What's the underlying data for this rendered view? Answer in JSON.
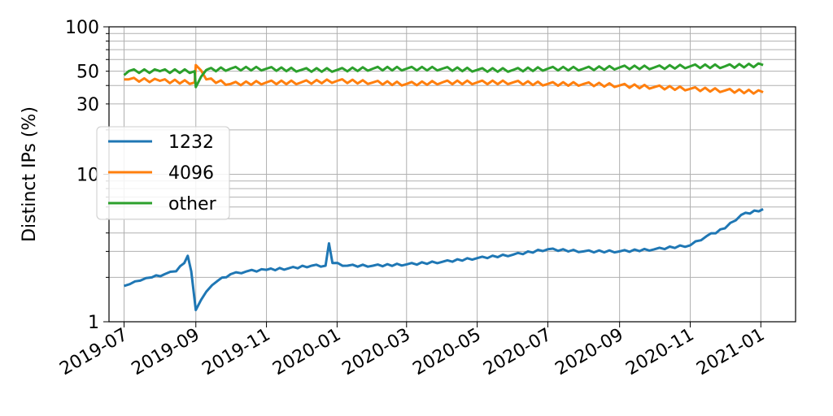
{
  "chart_data": {
    "type": "line",
    "title": "",
    "xlabel": "",
    "ylabel": "Distinct IPs (%)",
    "yscale": "log",
    "ylim": [
      1,
      100
    ],
    "xlim": [
      "2019-06-18",
      "2021-01-31"
    ],
    "grid": true,
    "legend_position": "center-left",
    "x_tick_labels": [
      "2019-07",
      "2019-09",
      "2019-11",
      "2020-01",
      "2020-03",
      "2020-05",
      "2020-07",
      "2020-09",
      "2020-11",
      "2021-01"
    ],
    "y_tick_labels": [
      "1",
      "10",
      "30",
      "50",
      "100"
    ],
    "series": [
      {
        "name": "1232",
        "color": "#1f77b4",
        "points": [
          [
            "2019-07-01",
            1.75
          ],
          [
            "2019-07-06",
            1.8
          ],
          [
            "2019-07-15",
            1.9
          ],
          [
            "2019-07-25",
            2.0
          ],
          [
            "2019-08-05",
            2.1
          ],
          [
            "2019-08-15",
            2.2
          ],
          [
            "2019-08-22",
            2.5
          ],
          [
            "2019-08-25",
            2.8
          ],
          [
            "2019-08-28",
            2.2
          ],
          [
            "2019-09-01",
            1.2
          ],
          [
            "2019-09-10",
            1.6
          ],
          [
            "2019-09-20",
            1.9
          ],
          [
            "2019-10-01",
            2.1
          ],
          [
            "2019-10-15",
            2.2
          ],
          [
            "2019-11-01",
            2.25
          ],
          [
            "2019-11-20",
            2.3
          ],
          [
            "2019-12-10",
            2.4
          ],
          [
            "2019-12-22",
            2.4
          ],
          [
            "2019-12-25",
            3.4
          ],
          [
            "2019-12-28",
            2.5
          ],
          [
            "2020-01-10",
            2.4
          ],
          [
            "2020-02-01",
            2.4
          ],
          [
            "2020-03-01",
            2.45
          ],
          [
            "2020-04-01",
            2.55
          ],
          [
            "2020-05-01",
            2.7
          ],
          [
            "2020-06-01",
            2.85
          ],
          [
            "2020-07-01",
            3.1
          ],
          [
            "2020-08-01",
            3.0
          ],
          [
            "2020-09-01",
            3.0
          ],
          [
            "2020-10-01",
            3.1
          ],
          [
            "2020-11-01",
            3.3
          ],
          [
            "2020-11-15",
            3.8
          ],
          [
            "2020-12-01",
            4.3
          ],
          [
            "2020-12-15",
            5.3
          ],
          [
            "2021-01-03",
            5.8
          ]
        ]
      },
      {
        "name": "4096",
        "color": "#ff7f0e",
        "points": [
          [
            "2019-07-01",
            44
          ],
          [
            "2019-07-05",
            44
          ],
          [
            "2019-08-01",
            43
          ],
          [
            "2019-08-31",
            42
          ],
          [
            "2019-09-01",
            55
          ],
          [
            "2019-09-10",
            44
          ],
          [
            "2019-10-01",
            41
          ],
          [
            "2019-11-01",
            42
          ],
          [
            "2019-12-01",
            42
          ],
          [
            "2020-01-01",
            43
          ],
          [
            "2020-02-01",
            42
          ],
          [
            "2020-03-01",
            41
          ],
          [
            "2020-04-01",
            42
          ],
          [
            "2020-05-01",
            42
          ],
          [
            "2020-06-01",
            42
          ],
          [
            "2020-07-01",
            41
          ],
          [
            "2020-08-01",
            41
          ],
          [
            "2020-09-01",
            40
          ],
          [
            "2020-10-01",
            39
          ],
          [
            "2020-11-01",
            38
          ],
          [
            "2020-12-01",
            37
          ],
          [
            "2021-01-03",
            36
          ]
        ]
      },
      {
        "name": "other",
        "color": "#2ca02c",
        "points": [
          [
            "2019-07-01",
            47
          ],
          [
            "2019-07-05",
            50
          ],
          [
            "2019-08-01",
            50
          ],
          [
            "2019-08-31",
            50
          ],
          [
            "2019-09-01",
            39
          ],
          [
            "2019-09-10",
            51
          ],
          [
            "2019-10-01",
            52
          ],
          [
            "2019-11-01",
            52
          ],
          [
            "2019-12-01",
            51
          ],
          [
            "2020-01-01",
            51
          ],
          [
            "2020-02-01",
            52
          ],
          [
            "2020-03-01",
            52
          ],
          [
            "2020-04-01",
            52
          ],
          [
            "2020-05-01",
            51
          ],
          [
            "2020-06-01",
            51
          ],
          [
            "2020-07-01",
            52
          ],
          [
            "2020-08-01",
            52
          ],
          [
            "2020-09-01",
            53
          ],
          [
            "2020-10-01",
            53
          ],
          [
            "2020-11-01",
            54
          ],
          [
            "2020-12-01",
            54
          ],
          [
            "2021-01-03",
            55
          ]
        ]
      }
    ]
  }
}
